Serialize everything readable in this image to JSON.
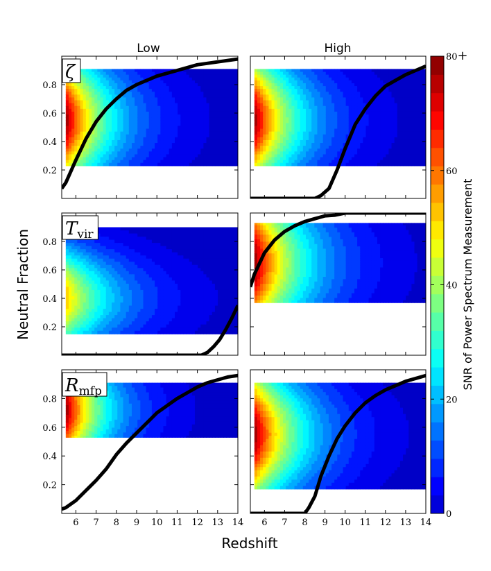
{
  "chart_data": {
    "type": "heatmap",
    "description_grid": "3 rows (parameters) x 2 columns (Low / High). Each panel: SNR contour region over redshift and neutral fraction, plus a black neutral-fraction history curve.",
    "column_titles": [
      "Low",
      "High"
    ],
    "row_labels": [
      {
        "symbol": "ζ",
        "subscript": ""
      },
      {
        "symbol": "T",
        "subscript": "vir"
      },
      {
        "symbol": "R",
        "subscript": "mfp"
      }
    ],
    "xlabel": "Redshift",
    "ylabel": "Neutral Fraction",
    "xlim": [
      5.3,
      14
    ],
    "ylim": [
      0,
      1
    ],
    "xticks": [
      "6",
      "7",
      "8",
      "9",
      "10",
      "11",
      "12",
      "13",
      "14"
    ],
    "xtick_values": [
      6,
      7,
      8,
      9,
      10,
      11,
      12,
      13,
      14
    ],
    "yticks": [
      "0.2",
      "0.4",
      "0.6",
      "0.8"
    ],
    "ytick_values": [
      0.2,
      0.4,
      0.6,
      0.8
    ],
    "colorbar": {
      "label": "SNR of Power Spectrum Measurement",
      "ticks": [
        "0",
        "20",
        "40",
        "60",
        "80"
      ],
      "tick_values": [
        0,
        20,
        40,
        60,
        80
      ],
      "top_marker": "+",
      "range": [
        0,
        80
      ],
      "colormap": "jet"
    },
    "panels": [
      {
        "row": 0,
        "col": 0,
        "region": {
          "z_min": 5.5,
          "z_max": 14,
          "xhi_min": 0.23,
          "xhi_max": 0.91
        },
        "snr_peak": 80,
        "snr_peak_xhi": 0.55,
        "decay_rate": 0.45,
        "vertical_width": 0.55,
        "curve": [
          [
            5.3,
            0.07
          ],
          [
            5.5,
            0.11
          ],
          [
            6,
            0.27
          ],
          [
            6.5,
            0.42
          ],
          [
            7,
            0.54
          ],
          [
            7.5,
            0.63
          ],
          [
            8,
            0.7
          ],
          [
            8.5,
            0.76
          ],
          [
            9,
            0.8
          ],
          [
            10,
            0.86
          ],
          [
            11,
            0.9
          ],
          [
            12,
            0.94
          ],
          [
            13,
            0.96
          ],
          [
            14,
            0.98
          ]
        ]
      },
      {
        "row": 0,
        "col": 1,
        "region": {
          "z_min": 5.5,
          "z_max": 14,
          "xhi_min": 0.23,
          "xhi_max": 0.91
        },
        "snr_peak": 80,
        "snr_peak_xhi": 0.55,
        "decay_rate": 0.45,
        "vertical_width": 0.55,
        "curve": [
          [
            5.3,
            0.0
          ],
          [
            8.5,
            0.0
          ],
          [
            8.8,
            0.02
          ],
          [
            9.2,
            0.07
          ],
          [
            9.6,
            0.2
          ],
          [
            10,
            0.35
          ],
          [
            10.5,
            0.52
          ],
          [
            11,
            0.63
          ],
          [
            11.5,
            0.72
          ],
          [
            12,
            0.79
          ],
          [
            12.5,
            0.83
          ],
          [
            13,
            0.87
          ],
          [
            13.5,
            0.9
          ],
          [
            14,
            0.93
          ]
        ]
      },
      {
        "row": 1,
        "col": 0,
        "region": {
          "z_min": 5.5,
          "z_max": 14,
          "xhi_min": 0.15,
          "xhi_max": 0.9
        },
        "snr_peak": 55,
        "snr_peak_xhi": 0.4,
        "decay_rate": 0.38,
        "vertical_width": 0.4,
        "curve": [
          [
            5.3,
            0.0
          ],
          [
            12.2,
            0.0
          ],
          [
            12.5,
            0.02
          ],
          [
            12.8,
            0.06
          ],
          [
            13.1,
            0.11
          ],
          [
            13.4,
            0.18
          ],
          [
            13.7,
            0.26
          ],
          [
            14,
            0.35
          ]
        ]
      },
      {
        "row": 1,
        "col": 1,
        "region": {
          "z_min": 5.5,
          "z_max": 14,
          "xhi_min": 0.37,
          "xhi_max": 0.93
        },
        "snr_peak": 80,
        "snr_peak_xhi": 0.65,
        "decay_rate": 0.4,
        "vertical_width": 0.6,
        "curve": [
          [
            5.3,
            0.48
          ],
          [
            5.5,
            0.57
          ],
          [
            6,
            0.72
          ],
          [
            6.5,
            0.81
          ],
          [
            7,
            0.87
          ],
          [
            7.5,
            0.91
          ],
          [
            8,
            0.94
          ],
          [
            8.5,
            0.96
          ],
          [
            9,
            0.98
          ],
          [
            9.5,
            0.985
          ],
          [
            10,
            1.0
          ],
          [
            14,
            1.0
          ]
        ]
      },
      {
        "row": 2,
        "col": 0,
        "region": {
          "z_min": 5.5,
          "z_max": 14,
          "xhi_min": 0.53,
          "xhi_max": 0.91
        },
        "snr_peak": 80,
        "snr_peak_xhi": 0.72,
        "decay_rate": 0.5,
        "vertical_width": 0.5,
        "curve": [
          [
            5.3,
            0.03
          ],
          [
            5.5,
            0.04
          ],
          [
            6,
            0.09
          ],
          [
            6.5,
            0.16
          ],
          [
            7,
            0.23
          ],
          [
            7.5,
            0.31
          ],
          [
            8,
            0.41
          ],
          [
            8.5,
            0.49
          ],
          [
            9,
            0.56
          ],
          [
            9.5,
            0.63
          ],
          [
            10,
            0.7
          ],
          [
            10.5,
            0.75
          ],
          [
            11,
            0.8
          ],
          [
            11.5,
            0.84
          ],
          [
            12,
            0.88
          ],
          [
            12.5,
            0.91
          ],
          [
            13,
            0.93
          ],
          [
            13.5,
            0.95
          ],
          [
            14,
            0.96
          ]
        ]
      },
      {
        "row": 2,
        "col": 1,
        "region": {
          "z_min": 5.5,
          "z_max": 14,
          "xhi_min": 0.17,
          "xhi_max": 0.91
        },
        "snr_peak": 80,
        "snr_peak_xhi": 0.55,
        "decay_rate": 0.42,
        "vertical_width": 0.55,
        "curve": [
          [
            5.3,
            0.0
          ],
          [
            8,
            0.0
          ],
          [
            8.2,
            0.04
          ],
          [
            8.5,
            0.12
          ],
          [
            8.8,
            0.26
          ],
          [
            9.2,
            0.4
          ],
          [
            9.6,
            0.52
          ],
          [
            10,
            0.61
          ],
          [
            10.5,
            0.7
          ],
          [
            11,
            0.77
          ],
          [
            11.5,
            0.82
          ],
          [
            12,
            0.86
          ],
          [
            12.5,
            0.89
          ],
          [
            13,
            0.92
          ],
          [
            13.5,
            0.94
          ],
          [
            14,
            0.96
          ]
        ]
      }
    ]
  }
}
